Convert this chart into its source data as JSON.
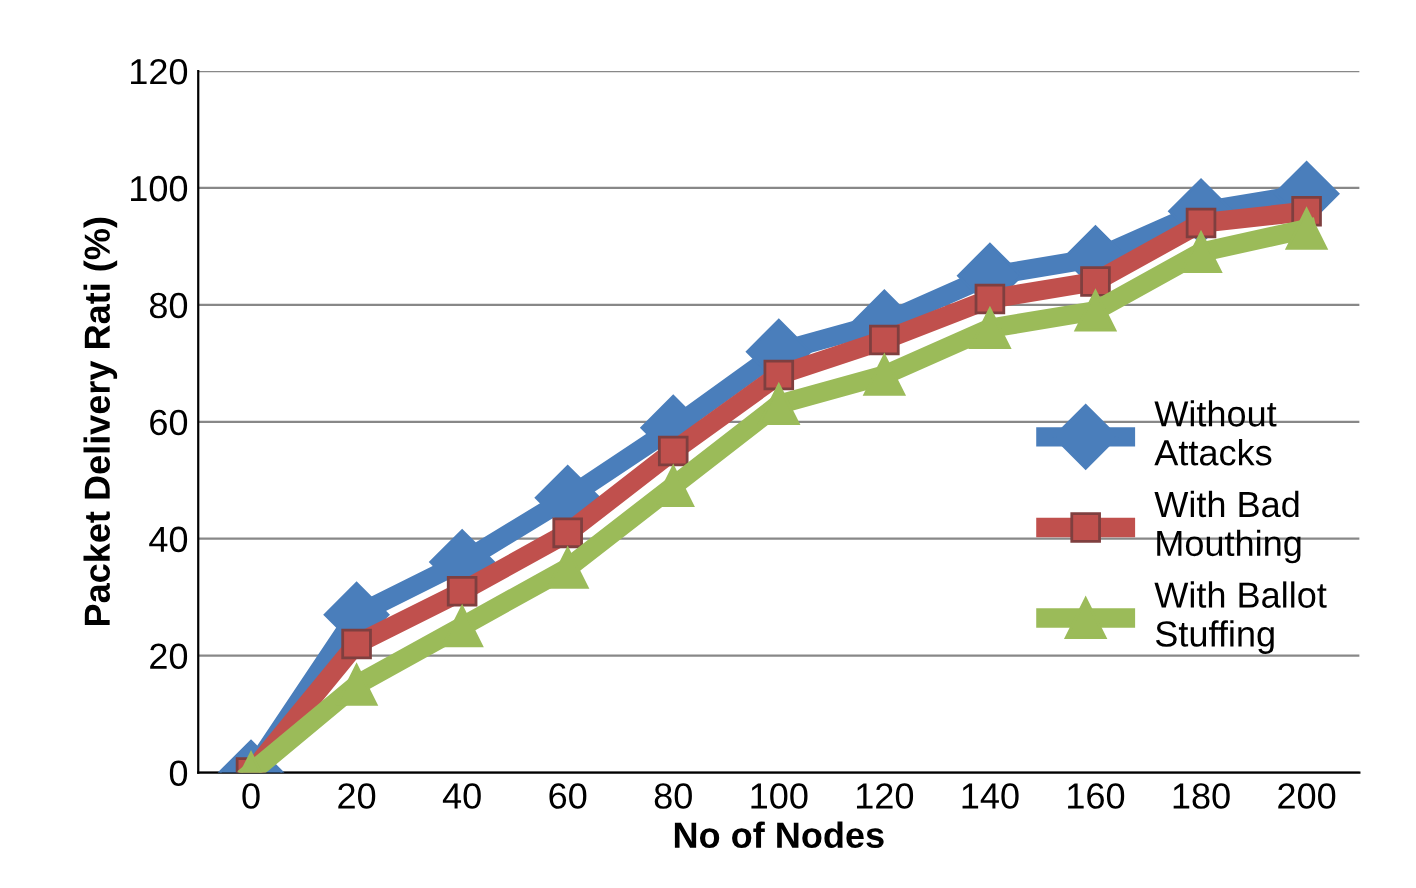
{
  "chart_data": {
    "type": "line",
    "xlabel": "No of Nodes",
    "ylabel": "Packet Delivery Rati (%)",
    "categories": [
      "0",
      "20",
      "40",
      "60",
      "80",
      "100",
      "120",
      "140",
      "160",
      "180",
      "200"
    ],
    "series": [
      {
        "name": "Without Attacks",
        "color": "#4a7ebb",
        "marker": "diamond",
        "values": [
          0,
          27,
          36,
          47,
          59,
          72,
          77,
          85,
          88,
          96,
          99
        ]
      },
      {
        "name": "With Bad Mouthing",
        "color": "#c0504d",
        "marker": "square",
        "values": [
          0,
          22,
          31,
          41,
          55,
          68,
          74,
          81,
          84,
          94,
          96
        ]
      },
      {
        "name": "With Ballot Stuffing",
        "color": "#9bbb59",
        "marker": "triangle",
        "values": [
          0,
          15,
          25,
          35,
          49,
          63,
          68,
          76,
          79,
          89,
          93
        ]
      }
    ],
    "ylim": [
      0,
      120
    ],
    "yticks": [
      0,
      20,
      40,
      60,
      80,
      100,
      120
    ],
    "grid": "y",
    "legend": "right"
  }
}
